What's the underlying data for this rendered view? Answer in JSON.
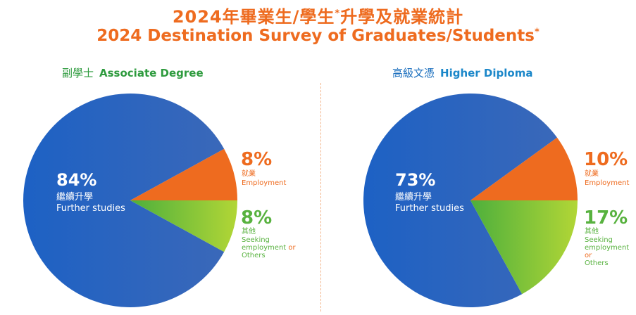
{
  "title": {
    "zh": "2024年畢業生/學生",
    "zh_star": "*",
    "zh_rest": "升學及就業統計",
    "en": "2024 Destination Survey of Graduates/Students",
    "en_star": "*"
  },
  "colors": {
    "orange": "#ee6b1f",
    "blue": "#1b5fbf",
    "green_light": "#a8d339",
    "green_dark": "#58b23f"
  },
  "chart_data": [
    {
      "type": "pie",
      "heading_zh": "副學士",
      "heading_en": "Associate Degree",
      "slices": [
        {
          "label_zh": "繼續升學",
          "label_en": "Further studies",
          "value": 84,
          "pct_label": "84%"
        },
        {
          "label_zh": "就業",
          "label_en": "Employment",
          "value": 8,
          "pct_label": "8%"
        },
        {
          "label_zh": "其他",
          "label_en_1": "Seeking",
          "label_en_2": "employment",
          "label_en_or": "or",
          "label_en_3": "Others",
          "value": 8,
          "pct_label": "8%"
        }
      ]
    },
    {
      "type": "pie",
      "heading_zh": "高級文憑",
      "heading_en": "Higher Diploma",
      "slices": [
        {
          "label_zh": "繼續升學",
          "label_en": "Further studies",
          "value": 73,
          "pct_label": "73%"
        },
        {
          "label_zh": "就業",
          "label_en": "Employment",
          "value": 10,
          "pct_label": "10%"
        },
        {
          "label_zh": "其他",
          "label_en_1": "Seeking",
          "label_en_2": "employment",
          "label_en_or": "or",
          "label_en_3": "Others",
          "value": 17,
          "pct_label": "17%"
        }
      ]
    }
  ]
}
